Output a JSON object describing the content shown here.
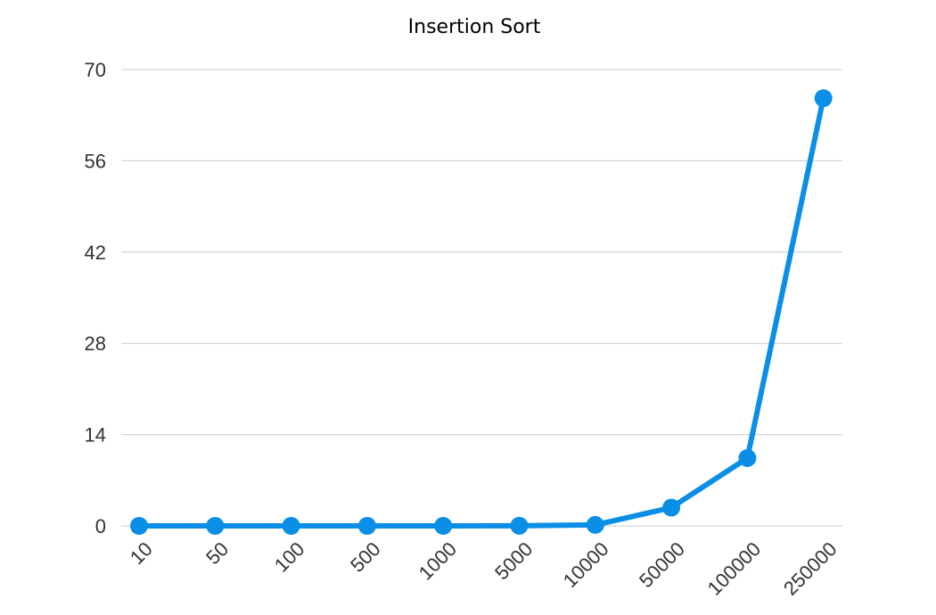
{
  "chart_data": {
    "type": "line",
    "title": "Insertion Sort",
    "xlabel": "",
    "ylabel": "",
    "categories": [
      "10",
      "50",
      "100",
      "500",
      "1000",
      "5000",
      "10000",
      "50000",
      "100000",
      "250000"
    ],
    "series": [
      {
        "values": [
          0,
          0,
          0,
          0,
          0,
          0.02,
          0.15,
          2.8,
          10.4,
          65.6
        ]
      }
    ],
    "ylim": [
      0,
      70
    ],
    "yticks": [
      "0",
      "14",
      "28",
      "42",
      "56",
      "70"
    ],
    "grid": "horizontal",
    "legend": "none",
    "colors": {
      "series": "#0b8ee6"
    }
  }
}
